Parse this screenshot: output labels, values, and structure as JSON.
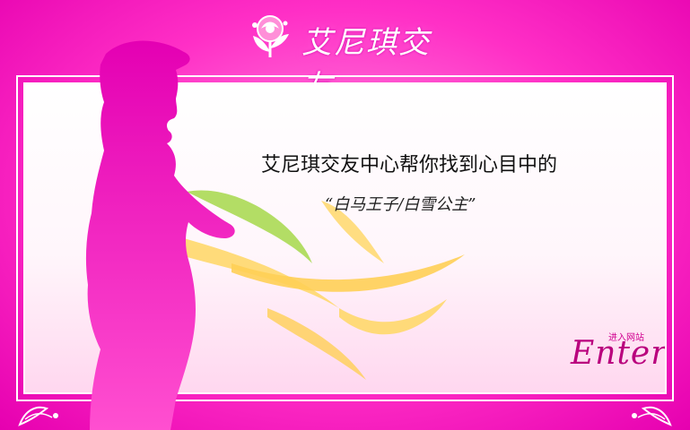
{
  "brand": {
    "title": "艾尼琪交友"
  },
  "main": {
    "headline": "艾尼琪交友中心帮你找到心目中的",
    "subline": "“白马王子/白雪公主”"
  },
  "enter": {
    "label_small": "进入网站",
    "label_big": "Enter"
  },
  "colors": {
    "background": "#ff2fc6",
    "frame": "#ffffff",
    "silhouette": "#ef00b6",
    "swirl_yellow": "#ffd86b",
    "swirl_green": "#a6d84a",
    "enter_text": "#b9007d"
  },
  "icons": {
    "logo": "rose-icon",
    "silhouette": "woman-silhouette",
    "swirls": "swirl-decoration",
    "corners": "ornament-corner"
  }
}
